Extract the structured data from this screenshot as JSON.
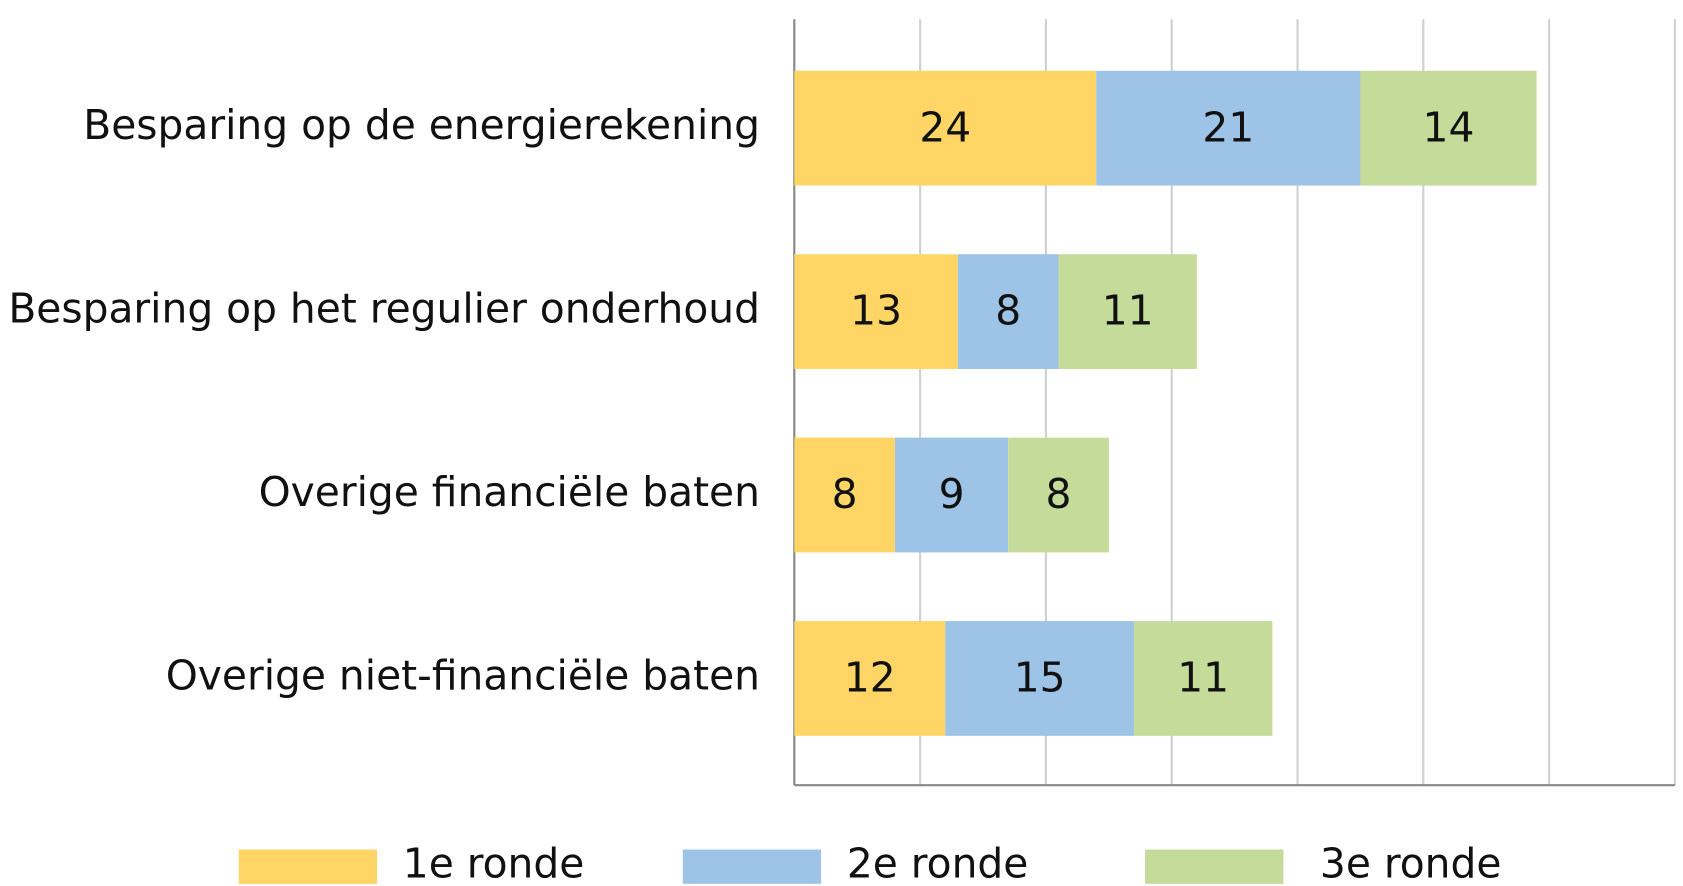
{
  "chart_data": {
    "type": "stacked_bar_horizontal",
    "categories": [
      "Besparing op de energierekening",
      "Besparing op het regulier onderhoud",
      "Overige financiële baten",
      "Overige niet-financiële baten"
    ],
    "series": [
      {
        "name": "1e ronde",
        "color": "#ffd666",
        "values": [
          24,
          13,
          8,
          12
        ]
      },
      {
        "name": "2e ronde",
        "color": "#9dc3e6",
        "values": [
          21,
          8,
          9,
          15
        ]
      },
      {
        "name": "3e ronde",
        "color": "#c5db9a",
        "values": [
          14,
          11,
          8,
          11
        ]
      }
    ],
    "xlim": [
      0,
      70
    ],
    "xticks": [
      0,
      10,
      20,
      30,
      40,
      50,
      60,
      70
    ],
    "grid": true,
    "legend": "bottom"
  }
}
